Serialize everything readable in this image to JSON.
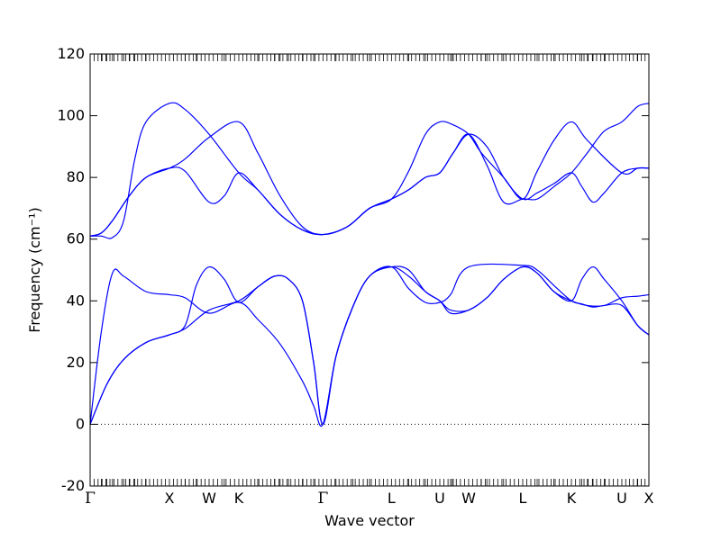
{
  "chart_data": {
    "type": "line",
    "title": "",
    "xlabel": "Wave vector",
    "ylabel": "Frequency (cm⁻¹)",
    "ylim": [
      -20,
      120
    ],
    "yticks": [
      -20,
      0,
      20,
      40,
      60,
      80,
      100,
      120
    ],
    "xlim": [
      0,
      1
    ],
    "grid": false,
    "series_color": "#0000ff",
    "zero_line": {
      "y": 0,
      "style": "dotted",
      "color": "#000000"
    },
    "high_symmetry_points": [
      {
        "label": "Γ",
        "x": 0.0
      },
      {
        "label": "X",
        "x": 0.1419
      },
      {
        "label": "W",
        "x": 0.2129
      },
      {
        "label": "K",
        "x": 0.2661
      },
      {
        "label": "Γ",
        "x": 0.4167
      },
      {
        "label": "L",
        "x": 0.5393
      },
      {
        "label": "U",
        "x": 0.6258
      },
      {
        "label": "W",
        "x": 0.6774
      },
      {
        "label": "L",
        "x": 0.7742
      },
      {
        "label": "K",
        "x": 0.8613
      },
      {
        "label": "U",
        "x": 0.9516
      },
      {
        "label": "X",
        "x": 1.0
      }
    ],
    "series": [
      {
        "values": [
          [
            0.0,
            0
          ],
          [
            0.03,
            13
          ],
          [
            0.06,
            21
          ],
          [
            0.1,
            26.5
          ],
          [
            0.1419,
            29
          ],
          [
            0.17,
            31
          ],
          [
            0.2129,
            37
          ],
          [
            0.2661,
            40
          ],
          [
            0.3,
            44.5
          ],
          [
            0.33,
            48
          ],
          [
            0.355,
            47
          ],
          [
            0.38,
            40
          ],
          [
            0.4,
            20
          ],
          [
            0.4167,
            0
          ],
          [
            0.44,
            22
          ],
          [
            0.47,
            38
          ],
          [
            0.5,
            48
          ],
          [
            0.5393,
            51
          ],
          [
            0.57,
            48
          ],
          [
            0.6,
            43
          ],
          [
            0.6258,
            40
          ],
          [
            0.645,
            37
          ],
          [
            0.6774,
            37
          ],
          [
            0.71,
            41
          ],
          [
            0.74,
            47
          ],
          [
            0.7742,
            51
          ],
          [
            0.8,
            49
          ],
          [
            0.83,
            43
          ],
          [
            0.8613,
            40
          ],
          [
            0.89,
            38.5
          ],
          [
            0.92,
            38.5
          ],
          [
            0.9516,
            41
          ],
          [
            0.98,
            41.5
          ],
          [
            1.0,
            42
          ]
        ]
      },
      {
        "values": [
          [
            0.0,
            0
          ],
          [
            0.03,
            13
          ],
          [
            0.06,
            21
          ],
          [
            0.1,
            26.5
          ],
          [
            0.1419,
            29
          ],
          [
            0.17,
            32
          ],
          [
            0.19,
            45
          ],
          [
            0.2129,
            51
          ],
          [
            0.24,
            47
          ],
          [
            0.2661,
            39.5
          ],
          [
            0.3,
            44.5
          ],
          [
            0.33,
            48
          ],
          [
            0.355,
            47
          ],
          [
            0.38,
            40
          ],
          [
            0.4,
            20
          ],
          [
            0.4167,
            0
          ],
          [
            0.44,
            22
          ],
          [
            0.47,
            38
          ],
          [
            0.5,
            48
          ],
          [
            0.5393,
            51
          ],
          [
            0.57,
            50
          ],
          [
            0.6,
            43
          ],
          [
            0.6258,
            40
          ],
          [
            0.645,
            36
          ],
          [
            0.6774,
            37
          ],
          [
            0.71,
            41
          ],
          [
            0.74,
            47
          ],
          [
            0.7742,
            51
          ],
          [
            0.8,
            49
          ],
          [
            0.83,
            43
          ],
          [
            0.8613,
            40
          ],
          [
            0.88,
            47
          ],
          [
            0.9,
            51
          ],
          [
            0.92,
            47
          ],
          [
            0.9516,
            40
          ],
          [
            0.98,
            32
          ],
          [
            1.0,
            29
          ]
        ]
      },
      {
        "values": [
          [
            0.0,
            0
          ],
          [
            0.02,
            30
          ],
          [
            0.04,
            49
          ],
          [
            0.06,
            48
          ],
          [
            0.1,
            43
          ],
          [
            0.1419,
            42
          ],
          [
            0.17,
            41
          ],
          [
            0.2129,
            36
          ],
          [
            0.2661,
            39.5
          ],
          [
            0.3,
            34
          ],
          [
            0.34,
            26
          ],
          [
            0.38,
            14
          ],
          [
            0.4,
            6
          ],
          [
            0.4167,
            0
          ],
          [
            0.44,
            22
          ],
          [
            0.47,
            38
          ],
          [
            0.5,
            48
          ],
          [
            0.5393,
            51
          ],
          [
            0.57,
            44
          ],
          [
            0.6,
            39.5
          ],
          [
            0.6258,
            39.5
          ],
          [
            0.645,
            42
          ],
          [
            0.6774,
            51
          ],
          [
            0.7742,
            51.5
          ],
          [
            0.8,
            50
          ],
          [
            0.83,
            45
          ],
          [
            0.8613,
            40
          ],
          [
            0.88,
            39
          ],
          [
            0.9,
            38
          ],
          [
            0.92,
            38.5
          ],
          [
            0.9516,
            38.5
          ],
          [
            0.98,
            32
          ],
          [
            1.0,
            29
          ]
        ]
      },
      {
        "values": [
          [
            0.0,
            61
          ],
          [
            0.02,
            62
          ],
          [
            0.04,
            66
          ],
          [
            0.07,
            74
          ],
          [
            0.1,
            80
          ],
          [
            0.1419,
            83
          ],
          [
            0.17,
            82
          ],
          [
            0.2129,
            72
          ],
          [
            0.24,
            74
          ],
          [
            0.2661,
            81.5
          ],
          [
            0.3,
            76
          ],
          [
            0.34,
            68
          ],
          [
            0.38,
            63
          ],
          [
            0.4167,
            61.5
          ],
          [
            0.46,
            64
          ],
          [
            0.5,
            70
          ],
          [
            0.5393,
            73
          ],
          [
            0.57,
            76
          ],
          [
            0.6,
            80
          ],
          [
            0.6258,
            81.5
          ],
          [
            0.65,
            88
          ],
          [
            0.6774,
            94
          ],
          [
            0.71,
            90
          ],
          [
            0.74,
            80
          ],
          [
            0.7742,
            73
          ],
          [
            0.8,
            75
          ],
          [
            0.83,
            78
          ],
          [
            0.8613,
            81.5
          ],
          [
            0.88,
            77
          ],
          [
            0.9,
            72
          ],
          [
            0.92,
            75
          ],
          [
            0.9516,
            81.5
          ],
          [
            0.98,
            83
          ],
          [
            1.0,
            83
          ]
        ]
      },
      {
        "values": [
          [
            0.0,
            61
          ],
          [
            0.02,
            62
          ],
          [
            0.04,
            66
          ],
          [
            0.07,
            74
          ],
          [
            0.1,
            80
          ],
          [
            0.1419,
            83
          ],
          [
            0.17,
            86
          ],
          [
            0.2129,
            93
          ],
          [
            0.2661,
            98
          ],
          [
            0.3,
            88
          ],
          [
            0.34,
            74
          ],
          [
            0.38,
            64
          ],
          [
            0.4167,
            61.5
          ],
          [
            0.46,
            64
          ],
          [
            0.5,
            70
          ],
          [
            0.5393,
            73
          ],
          [
            0.57,
            82
          ],
          [
            0.6,
            94
          ],
          [
            0.6258,
            98
          ],
          [
            0.65,
            97
          ],
          [
            0.6774,
            94
          ],
          [
            0.7,
            88
          ],
          [
            0.74,
            80
          ],
          [
            0.7742,
            73
          ],
          [
            0.8,
            82
          ],
          [
            0.83,
            92
          ],
          [
            0.8613,
            98
          ],
          [
            0.89,
            92
          ],
          [
            0.9516,
            81.5
          ],
          [
            0.98,
            83
          ],
          [
            1.0,
            83
          ]
        ]
      },
      {
        "values": [
          [
            0.0,
            61
          ],
          [
            0.02,
            61
          ],
          [
            0.04,
            60.5
          ],
          [
            0.06,
            66
          ],
          [
            0.08,
            86
          ],
          [
            0.1,
            98
          ],
          [
            0.1419,
            104
          ],
          [
            0.17,
            102
          ],
          [
            0.2129,
            94
          ],
          [
            0.2661,
            81.5
          ],
          [
            0.3,
            76
          ],
          [
            0.34,
            68
          ],
          [
            0.38,
            63
          ],
          [
            0.4167,
            61.5
          ],
          [
            0.46,
            64
          ],
          [
            0.5,
            70
          ],
          [
            0.5393,
            73
          ],
          [
            0.57,
            76
          ],
          [
            0.6,
            80
          ],
          [
            0.6258,
            81.5
          ],
          [
            0.65,
            88
          ],
          [
            0.6774,
            94
          ],
          [
            0.71,
            84
          ],
          [
            0.74,
            72
          ],
          [
            0.7742,
            73
          ],
          [
            0.8,
            73
          ],
          [
            0.83,
            77
          ],
          [
            0.8613,
            81.5
          ],
          [
            0.89,
            88
          ],
          [
            0.92,
            95
          ],
          [
            0.9516,
            98
          ],
          [
            0.98,
            103
          ],
          [
            1.0,
            104
          ]
        ]
      }
    ]
  }
}
